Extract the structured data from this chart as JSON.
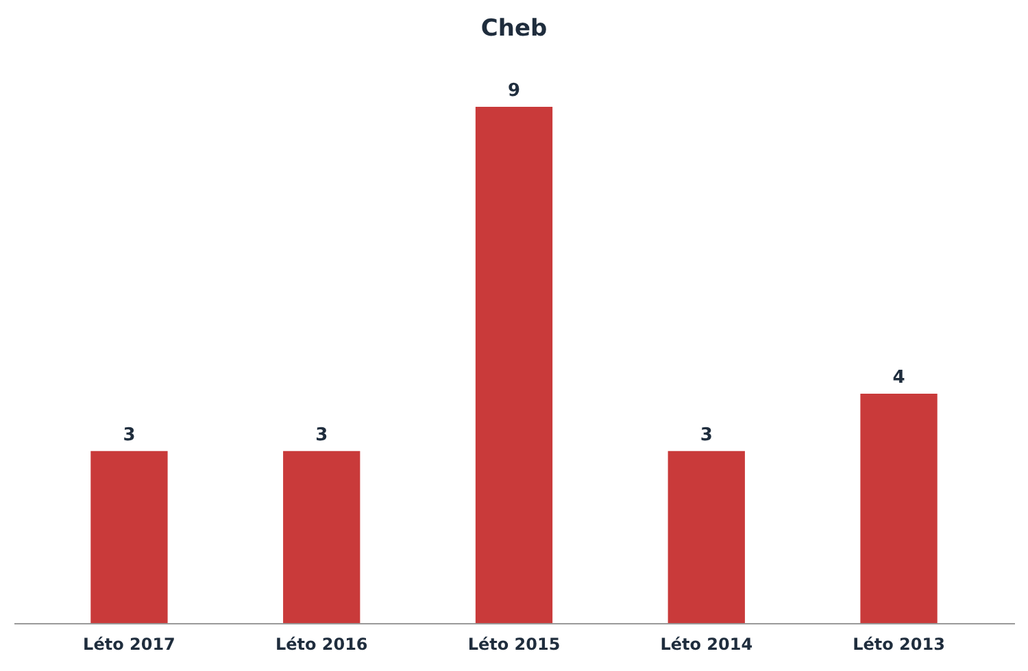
{
  "chart_data": {
    "type": "bar",
    "title": "Cheb",
    "categories": [
      "Léto 2017",
      "Léto 2016",
      "Léto 2015",
      "Léto 2014",
      "Léto 2013"
    ],
    "values": [
      3,
      3,
      9,
      3,
      4
    ],
    "color": "#c93a3a",
    "data_labels": true
  }
}
